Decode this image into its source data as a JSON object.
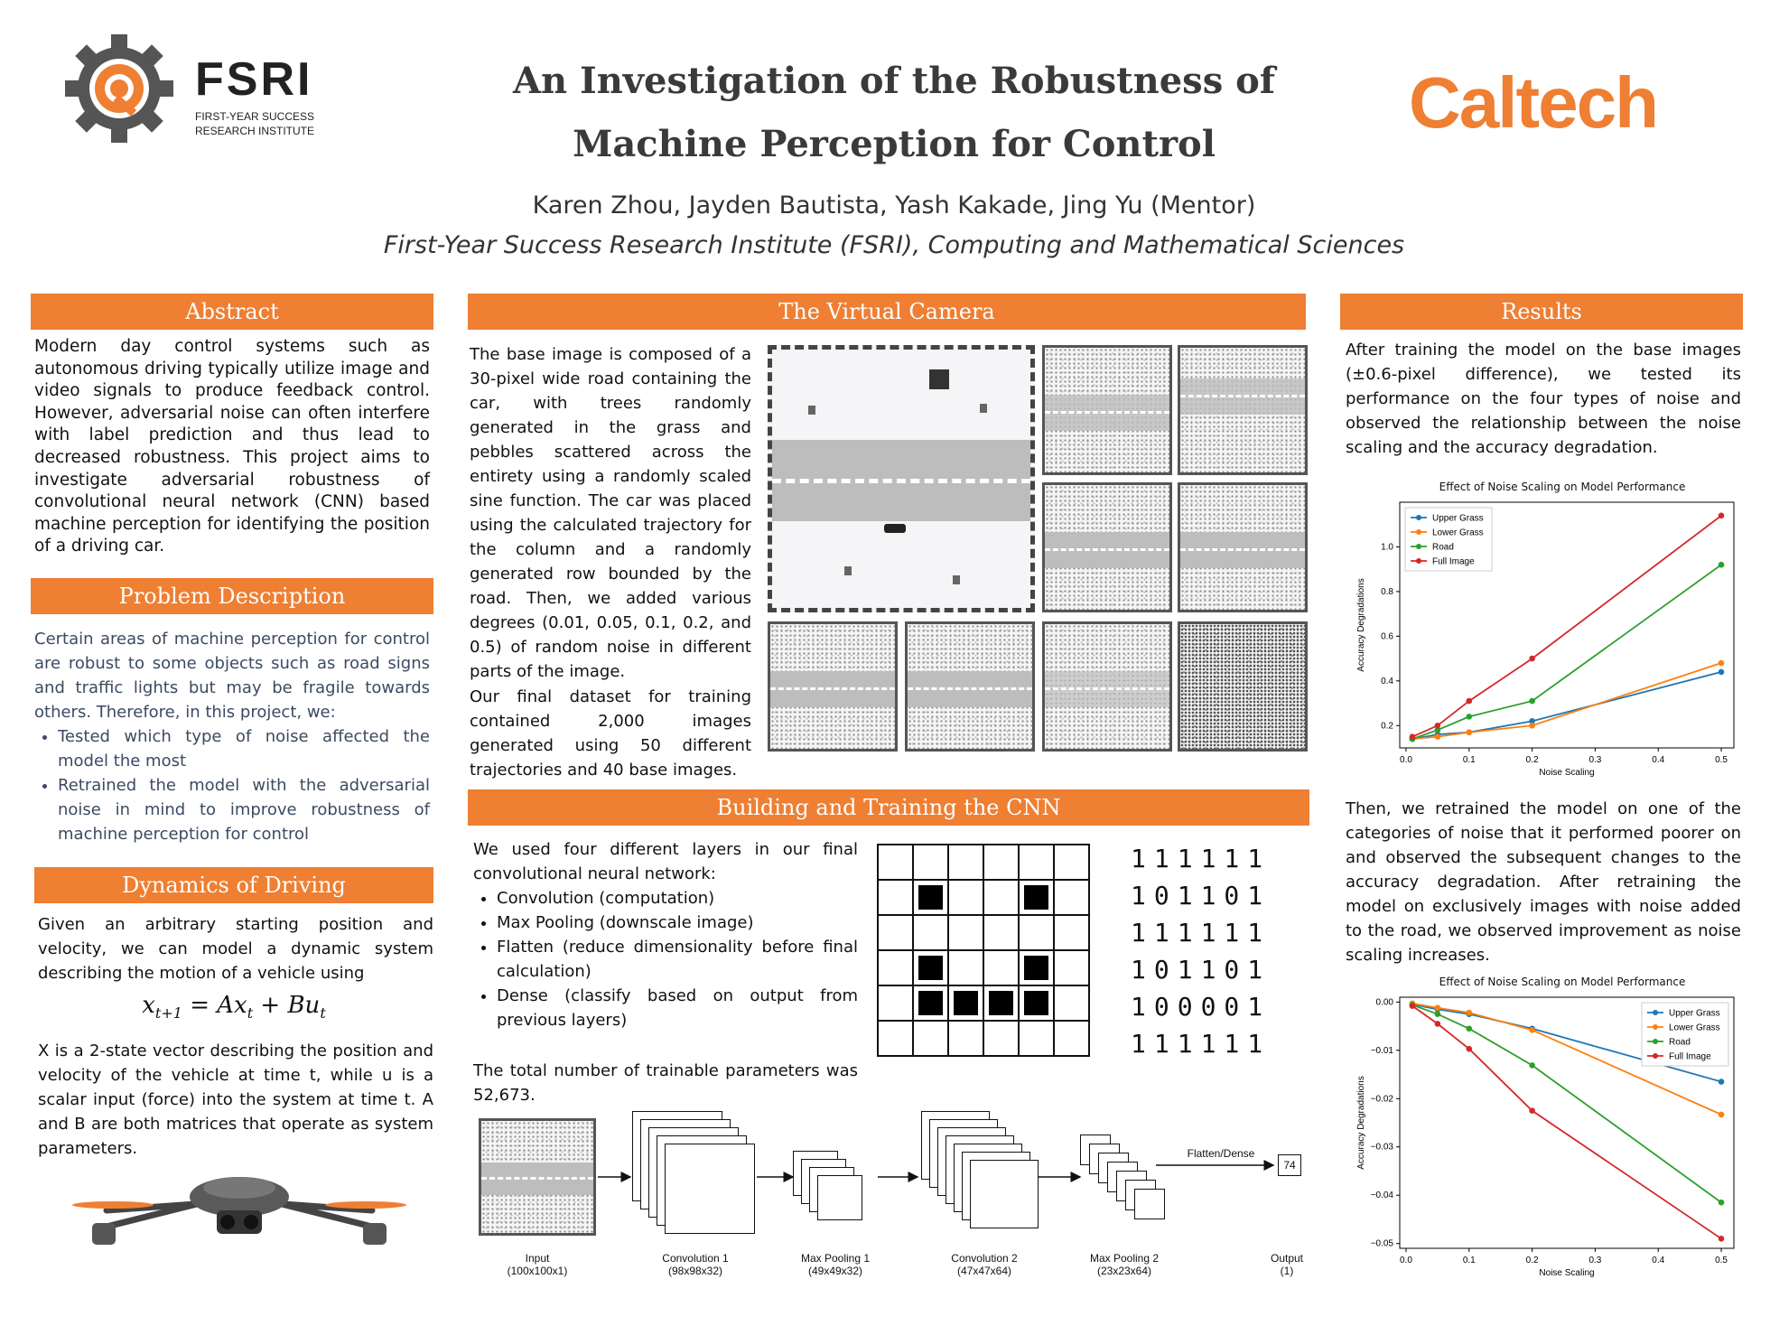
{
  "header": {
    "fsri_logo": "FSRI",
    "fsri_sub1": "FIRST-YEAR SUCCESS",
    "fsri_sub2": "RESEARCH INSTITUTE",
    "title_line1": "An Investigation of the Robustness of",
    "title_line2": "Machine Perception for Control",
    "authors": "Karen Zhou, Jayden Bautista, Yash Kakade, Jing Yu (Mentor)",
    "affiliation": "First-Year Success Research Institute (FSRI), Computing and Mathematical Sciences",
    "caltech_logo": "Caltech"
  },
  "abstract": {
    "heading": "Abstract",
    "text": "Modern day control systems such as autonomous driving typically utilize image and video signals to produce feedback control. However, adversarial noise can often interfere with label prediction and thus lead to decreased robustness. This project aims to investigate adversarial robustness of convolutional neural network (CNN) based machine perception for identifying the position of a driving car."
  },
  "problem": {
    "heading": "Problem Description",
    "text": "Certain areas of machine perception for control are robust to some objects such as road signs and traffic lights but may be fragile towards others. Therefore, in this project, we:",
    "bullets": [
      "Tested which type of noise affected the model the most",
      "Retrained the model with the adversarial noise in mind to improve robustness of machine perception for control"
    ]
  },
  "dynamics": {
    "heading": "Dynamics of Driving",
    "text": "Given an arbitrary starting position and velocity, we can model a dynamic system describing the motion of a vehicle using",
    "eq_lhs": "x",
    "eq_lhs_sub": "t+1",
    "eq_mid": " = Ax",
    "eq_mid_sub": "t",
    "eq_rhs": " + Bu",
    "eq_rhs_sub": "t",
    "text2": "X is a 2-state vector describing the position and velocity of the vehicle at time t, while u is a scalar input (force) into the system at time t. A and B are both matrices that operate as system parameters."
  },
  "camera": {
    "heading": "The Virtual Camera",
    "text1": "The base image is composed of a 30-pixel wide road containing the car, with trees randomly generated in the grass and pebbles scattered across the entirety using a randomly scaled sine function. The car was placed using the calculated trajectory for the column and a randomly generated row bounded by the road. Then, we added various degrees (0.01, 0.05, 0.1, 0.2, and 0.5) of random noise in different parts of the image.",
    "text2": "Our final dataset for training contained 2,000 images generated using 50 different trajectories and 40 base images."
  },
  "cnn": {
    "heading": "Building and Training the CNN",
    "text1": "We used four different layers in our final convolutional neural network:",
    "bullets": [
      "Convolution (computation)",
      "Max Pooling (downscale image)",
      "Flatten (reduce dimensionality before final calculation)",
      "Dense (classify based on output from previous layers)"
    ],
    "text2": "The total number of trainable parameters was 52,673.",
    "binary_rows": [
      "111111",
      "101101",
      "111111",
      "101101",
      "100001",
      "111111"
    ],
    "pipeline": [
      {
        "name": "Input",
        "dim": "(100x100x1)"
      },
      {
        "name": "Convolution 1",
        "dim": "(98x98x32)"
      },
      {
        "name": "Max Pooling 1",
        "dim": "(49x49x32)"
      },
      {
        "name": "Convolution 2",
        "dim": "(47x47x64)"
      },
      {
        "name": "Max Pooling 2",
        "dim": "(23x23x64)"
      },
      {
        "name": "Output",
        "dim": "(1)"
      }
    ],
    "flatten_label": "Flatten/Dense",
    "output_value": "74"
  },
  "results": {
    "heading": "Results",
    "text1": "After training the model on the base images (±0.6-pixel difference), we tested its performance on the four types of noise and observed the relationship between the noise scaling and the accuracy degradation.",
    "text2": "Then, we retrained the model on one of the categories of noise that it performed poorer on and observed the subsequent changes to the accuracy degradation. After retraining the model on exclusively images with noise added to the road, we observed improvement as noise scaling increases."
  },
  "chart_data": [
    {
      "type": "line",
      "title": "Effect of Noise Scaling on Model Performance",
      "xlabel": "Noise Scaling",
      "ylabel": "Accuracy Degradations",
      "x": [
        0.01,
        0.05,
        0.1,
        0.2,
        0.5
      ],
      "xlim": [
        -0.01,
        0.52
      ],
      "ylim": [
        0.1,
        1.2
      ],
      "xticks": [
        "0.0",
        "0.1",
        "0.2",
        "0.3",
        "0.4",
        "0.5"
      ],
      "xtick_vals": [
        0,
        0.1,
        0.2,
        0.3,
        0.4,
        0.5
      ],
      "yticks": [
        "0.2",
        "0.4",
        "0.6",
        "0.8",
        "1.0"
      ],
      "ytick_vals": [
        0.2,
        0.4,
        0.6,
        0.8,
        1.0
      ],
      "legend": "top-left",
      "series": [
        {
          "name": "Upper Grass",
          "color": "#1f77b4",
          "values": [
            0.14,
            0.16,
            0.17,
            0.22,
            0.44
          ]
        },
        {
          "name": "Lower Grass",
          "color": "#ff7f0e",
          "values": [
            0.14,
            0.15,
            0.17,
            0.2,
            0.48
          ]
        },
        {
          "name": "Road",
          "color": "#2ca02c",
          "values": [
            0.14,
            0.18,
            0.24,
            0.31,
            0.92
          ]
        },
        {
          "name": "Full Image",
          "color": "#d62728",
          "values": [
            0.15,
            0.2,
            0.31,
            0.5,
            1.14
          ]
        }
      ]
    },
    {
      "type": "line",
      "title": "Effect of Noise Scaling on Model Performance",
      "xlabel": "Noise Scaling",
      "ylabel": "Accuracy Degradations",
      "x": [
        0.01,
        0.05,
        0.1,
        0.2,
        0.5
      ],
      "xlim": [
        -0.01,
        0.52
      ],
      "ylim": [
        -0.051,
        0.001
      ],
      "xticks": [
        "0.0",
        "0.1",
        "0.2",
        "0.3",
        "0.4",
        "0.5"
      ],
      "xtick_vals": [
        0,
        0.1,
        0.2,
        0.3,
        0.4,
        0.5
      ],
      "yticks": [
        "0.00",
        "−0.01",
        "−0.02",
        "−0.03",
        "−0.04",
        "−0.05"
      ],
      "ytick_vals": [
        0,
        -0.01,
        -0.02,
        -0.03,
        -0.04,
        -0.05
      ],
      "legend": "top-right",
      "series": [
        {
          "name": "Upper Grass",
          "color": "#1f77b4",
          "values": [
            -0.0005,
            -0.0015,
            -0.0025,
            -0.0055,
            -0.0165
          ]
        },
        {
          "name": "Lower Grass",
          "color": "#ff7f0e",
          "values": [
            -0.0003,
            -0.0012,
            -0.0022,
            -0.0058,
            -0.0233
          ]
        },
        {
          "name": "Road",
          "color": "#2ca02c",
          "values": [
            -0.0006,
            -0.0025,
            -0.0055,
            -0.0131,
            -0.0415
          ]
        },
        {
          "name": "Full Image",
          "color": "#d62728",
          "values": [
            -0.0008,
            -0.0045,
            -0.0097,
            -0.0225,
            -0.049
          ]
        }
      ]
    }
  ]
}
